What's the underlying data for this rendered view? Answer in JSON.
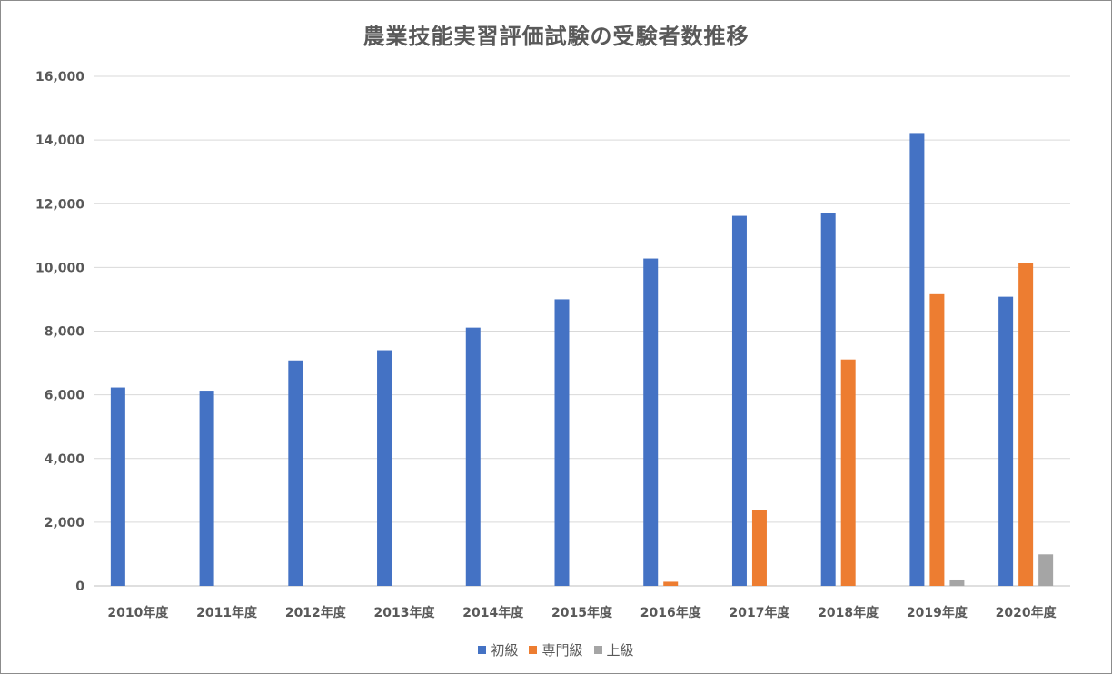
{
  "chart_data": {
    "type": "bar",
    "title": "農業技能実習評価試験の受験者数推移",
    "categories": [
      "2010年度",
      "2011年度",
      "2012年度",
      "2013年度",
      "2014年度",
      "2015年度",
      "2016年度",
      "2017年度",
      "2018年度",
      "2019年度",
      "2020年度"
    ],
    "series": [
      {
        "name": "初級",
        "color": "#4472C4",
        "values": [
          6230,
          6130,
          7080,
          7400,
          8110,
          9000,
          10280,
          11620,
          11710,
          14220,
          9080
        ]
      },
      {
        "name": "専門級",
        "color": "#ED7D31",
        "values": [
          0,
          0,
          0,
          0,
          0,
          0,
          130,
          2370,
          7110,
          9160,
          10140
        ]
      },
      {
        "name": "上級",
        "color": "#A5A5A5",
        "values": [
          0,
          0,
          0,
          0,
          0,
          0,
          0,
          0,
          0,
          200,
          990
        ]
      }
    ],
    "y_ticks": [
      "0",
      "2,000",
      "4,000",
      "6,000",
      "8,000",
      "10,000",
      "12,000",
      "14,000",
      "16,000"
    ],
    "ylim": [
      0,
      16000
    ],
    "grid": true,
    "legend_position": "bottom"
  }
}
